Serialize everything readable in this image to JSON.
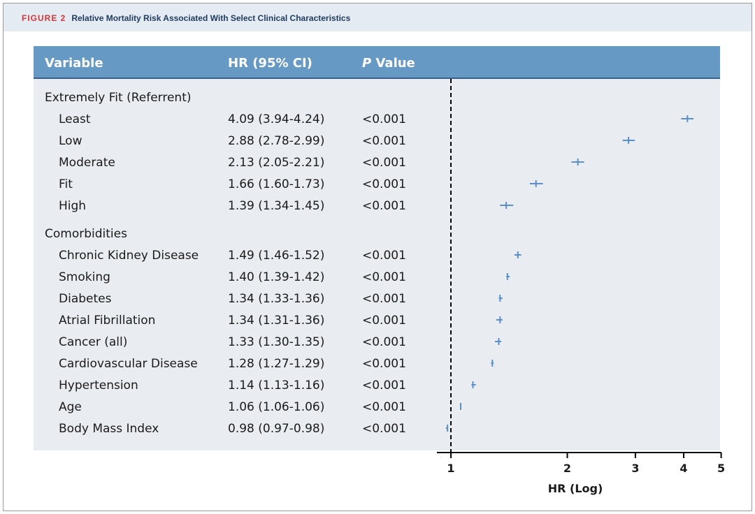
{
  "figure": {
    "label": "FIGURE 2",
    "title": "Relative Mortality Risk Associated With Select Clinical Characteristics"
  },
  "table": {
    "headers": {
      "variable": "Variable",
      "hr": "HR (95% CI)",
      "p_prefix": "P",
      "p_rest": " Value"
    }
  },
  "colors": {
    "header_band": "#e4ebf2",
    "table_header": "#6699c4",
    "table_body": "#e9edf2",
    "marker": "#5b8fc9",
    "text": "#1a1a1a",
    "figure_label": "#d1373a",
    "figure_title": "#1e3a5f"
  },
  "chart_data": {
    "type": "forest",
    "xscale": "log",
    "xlabel": "HR (Log)",
    "xticks": [
      1,
      2,
      3,
      4,
      5
    ],
    "xlim": [
      0.92,
      5
    ],
    "reference_line": 1,
    "groups": [
      {
        "name": "Extremely Fit (Referrent)",
        "rows": [
          {
            "label": "Least",
            "hr": 4.09,
            "lo": 3.94,
            "hi": 4.24,
            "hr_text": "4.09 (3.94-4.24)",
            "p": "<0.001"
          },
          {
            "label": "Low",
            "hr": 2.88,
            "lo": 2.78,
            "hi": 2.99,
            "hr_text": "2.88 (2.78-2.99)",
            "p": "<0.001"
          },
          {
            "label": "Moderate",
            "hr": 2.13,
            "lo": 2.05,
            "hi": 2.21,
            "hr_text": "2.13 (2.05-2.21)",
            "p": "<0.001"
          },
          {
            "label": "Fit",
            "hr": 1.66,
            "lo": 1.6,
            "hi": 1.73,
            "hr_text": "1.66 (1.60-1.73)",
            "p": "<0.001"
          },
          {
            "label": "High",
            "hr": 1.39,
            "lo": 1.34,
            "hi": 1.45,
            "hr_text": "1.39 (1.34-1.45)",
            "p": "<0.001"
          }
        ]
      },
      {
        "name": "Comorbidities",
        "rows": [
          {
            "label": "Chronic Kidney Disease",
            "hr": 1.49,
            "lo": 1.46,
            "hi": 1.52,
            "hr_text": "1.49 (1.46-1.52)",
            "p": "<0.001"
          },
          {
            "label": "Smoking",
            "hr": 1.4,
            "lo": 1.39,
            "hi": 1.42,
            "hr_text": "1.40 (1.39-1.42)",
            "p": "<0.001"
          },
          {
            "label": "Diabetes",
            "hr": 1.34,
            "lo": 1.33,
            "hi": 1.36,
            "hr_text": "1.34 (1.33-1.36)",
            "p": "<0.001"
          },
          {
            "label": "Atrial Fibrillation",
            "hr": 1.34,
            "lo": 1.31,
            "hi": 1.36,
            "hr_text": "1.34 (1.31-1.36)",
            "p": "<0.001"
          },
          {
            "label": "Cancer (all)",
            "hr": 1.33,
            "lo": 1.3,
            "hi": 1.35,
            "hr_text": "1.33 (1.30-1.35)",
            "p": "<0.001"
          },
          {
            "label": "Cardiovascular Disease",
            "hr": 1.28,
            "lo": 1.27,
            "hi": 1.29,
            "hr_text": "1.28 (1.27-1.29)",
            "p": "<0.001"
          },
          {
            "label": "Hypertension",
            "hr": 1.14,
            "lo": 1.13,
            "hi": 1.16,
            "hr_text": "1.14 (1.13-1.16)",
            "p": "<0.001"
          },
          {
            "label": "Age",
            "hr": 1.06,
            "lo": 1.06,
            "hi": 1.06,
            "hr_text": "1.06 (1.06-1.06)",
            "p": "<0.001"
          },
          {
            "label": "Body Mass Index",
            "hr": 0.98,
            "lo": 0.97,
            "hi": 0.98,
            "hr_text": "0.98 (0.97-0.98)",
            "p": "<0.001"
          }
        ]
      }
    ]
  }
}
